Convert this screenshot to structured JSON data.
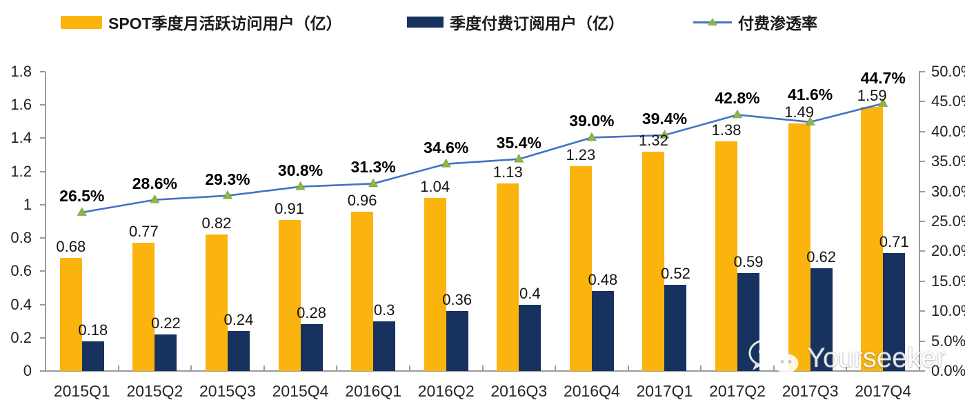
{
  "legend": [
    {
      "label": "SPOT季度月活跃访问用户（亿）"
    },
    {
      "label": "季度付费订阅用户（亿）"
    },
    {
      "label": "付费渗透率"
    }
  ],
  "watermark": {
    "text": "Yourseeker",
    "icon": "wechat-icon"
  },
  "chart_data": {
    "type": "bar+line",
    "categories": [
      "2015Q1",
      "2015Q2",
      "2015Q3",
      "2015Q4",
      "2016Q1",
      "2016Q2",
      "2016Q3",
      "2016Q4",
      "2017Q1",
      "2017Q2",
      "2017Q3",
      "2017Q4"
    ],
    "series": [
      {
        "name": "SPOT季度月活跃访问用户（亿）",
        "type": "bar",
        "axis": "left",
        "color": "#FBB40D",
        "values": [
          0.68,
          0.77,
          0.82,
          0.91,
          0.96,
          1.04,
          1.13,
          1.23,
          1.32,
          1.38,
          1.49,
          1.59
        ],
        "labels": [
          "0.68",
          "0.77",
          "0.82",
          "0.91",
          "0.96",
          "1.04",
          "1.13",
          "1.23",
          "1.32",
          "1.38",
          "1.49",
          "1.59"
        ]
      },
      {
        "name": "季度付费订阅用户（亿）",
        "type": "bar",
        "axis": "left",
        "color": "#17325F",
        "values": [
          0.18,
          0.22,
          0.24,
          0.28,
          0.3,
          0.36,
          0.4,
          0.48,
          0.52,
          0.59,
          0.62,
          0.71
        ],
        "labels": [
          "0.18",
          "0.22",
          "0.24",
          "0.28",
          "0.3",
          "0.36",
          "0.4",
          "0.48",
          "0.52",
          "0.59",
          "0.62",
          "0.71"
        ]
      },
      {
        "name": "付费渗透率",
        "type": "line",
        "axis": "right",
        "color": "#4472C4",
        "marker_color": "#8DB646",
        "values": [
          26.5,
          28.6,
          29.3,
          30.8,
          31.3,
          34.6,
          35.4,
          39.0,
          39.4,
          42.8,
          41.6,
          44.7
        ],
        "labels": [
          "26.5%",
          "28.6%",
          "29.3%",
          "30.8%",
          "31.3%",
          "34.6%",
          "35.4%",
          "39.0%",
          "39.4%",
          "42.8%",
          "41.6%",
          "44.7%"
        ]
      }
    ],
    "left_axis": {
      "min": 0,
      "max": 1.8,
      "step": 0.2,
      "ticks": [
        "0",
        "0.2",
        "0.4",
        "0.6",
        "0.8",
        "1",
        "1.2",
        "1.4",
        "1.6",
        "1.8"
      ]
    },
    "right_axis": {
      "min": 0,
      "max": 50,
      "step": 5,
      "ticks": [
        "0.0%",
        "5.0%",
        "10.0%",
        "15.0%",
        "20.0%",
        "25.0%",
        "30.0%",
        "35.0%",
        "40.0%",
        "45.0%",
        "50.0%"
      ]
    },
    "grid": false,
    "legend_position": "top"
  }
}
